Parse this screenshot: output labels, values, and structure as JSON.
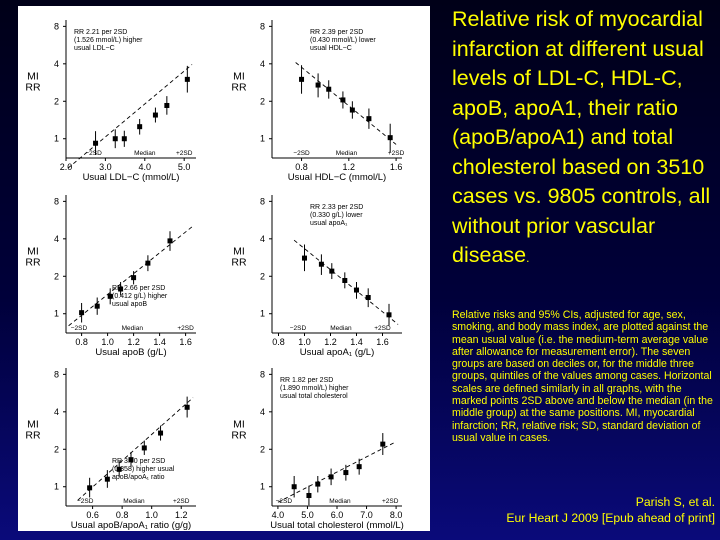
{
  "title": "Relative risk of myocardial infarction at different usual levels of LDL-C, HDL-C, apoB, apoA1, their ratio (apoB/apoA1) and total cholesterol based on 3510 cases vs. 9805 controls, all without prior vascular disease",
  "title_period": ".",
  "description": "Relative risks and 95% CIs, adjusted for age, sex, smoking, and body mass index, are plotted against the mean usual value (i.e. the medium-term average value after allowance for measurement error). The seven groups are based on deciles or, for the middle three groups, quintiles of the values among cases. Horizontal scales are defined similarly in all graphs, with the marked points 2SD above and below the median (in the middle group) at the same positions. MI, myocardial infarction; RR, relative risk; SD, standard deviation of usual value in cases.",
  "citation": {
    "authors": "Parish S, et al.",
    "journal": "Eur Heart J 2009 [Epub ahead of print]"
  },
  "colors": {
    "background": "#00003a",
    "text": "#ffff00",
    "figure_bg": "#ffffff",
    "ink": "#000000"
  },
  "chart_data": [
    {
      "type": "scatter",
      "xlabel": "Usual LDL−C (mmol/L)",
      "ylabel": [
        "MI",
        "RR"
      ],
      "xlim": [
        2.0,
        5.3
      ],
      "xticks": [
        2.0,
        3.0,
        4.0,
        5.0
      ],
      "xtick_labels": [
        "2.0",
        "3.0",
        "4.0",
        "5.0"
      ],
      "ylim_log": [
        0.7,
        9
      ],
      "yticks": [
        1,
        2,
        4,
        8
      ],
      "ytick_labels": [
        "1",
        "2",
        "4",
        "8"
      ],
      "annotation": [
        "RR 2.21 per 2SD",
        "(1.526 mmol/L) higher",
        "usual LDL−C"
      ],
      "annotation_position": "top-left",
      "sd_labels": [
        "−2SD",
        "Median",
        "+2SD"
      ],
      "sd_positions": [
        2.7,
        4.0,
        5.0
      ],
      "x": [
        2.75,
        3.25,
        3.48,
        3.87,
        4.27,
        4.56,
        5.08
      ],
      "y": [
        0.92,
        1.0,
        1.0,
        1.25,
        1.55,
        1.85,
        3.0
      ],
      "ci_low": [
        0.74,
        0.84,
        0.86,
        1.08,
        1.35,
        1.56,
        2.35
      ],
      "ci_high": [
        1.15,
        1.19,
        1.16,
        1.44,
        1.78,
        2.2,
        3.85
      ],
      "trend": [
        [
          2.05,
          0.58
        ],
        [
          5.2,
          3.95
        ]
      ]
    },
    {
      "type": "scatter",
      "xlabel": "Usual HDL−C (mmol/L)",
      "ylabel": [
        "MI",
        "RR"
      ],
      "xlim": [
        0.55,
        1.65
      ],
      "xticks": [
        0.8,
        1.2,
        1.6
      ],
      "xtick_labels": [
        "0.8",
        "1.2",
        "1.6"
      ],
      "ylim_log": [
        0.7,
        9
      ],
      "yticks": [
        1,
        2,
        4,
        8
      ],
      "ytick_labels": [
        "1",
        "2",
        "4",
        "8"
      ],
      "annotation": [
        "RR 2.39 per 2SD",
        "(0.430 mmol/L) lower",
        "usual HDL−C"
      ],
      "annotation_position": "top-center",
      "sd_labels": [
        "−2SD",
        "Median",
        "+2SD"
      ],
      "sd_positions": [
        0.8,
        1.18,
        1.6
      ],
      "x": [
        0.8,
        0.94,
        1.03,
        1.15,
        1.23,
        1.37,
        1.55
      ],
      "y": [
        3.0,
        2.7,
        2.5,
        2.05,
        1.7,
        1.45,
        1.02
      ],
      "ci_low": [
        2.3,
        2.15,
        2.1,
        1.75,
        1.45,
        1.2,
        0.78
      ],
      "ci_high": [
        3.9,
        3.35,
        2.95,
        2.4,
        2.0,
        1.75,
        1.32
      ],
      "trend": [
        [
          0.75,
          4.1
        ],
        [
          1.6,
          0.9
        ]
      ]
    },
    {
      "type": "scatter",
      "xlabel": "Usual apoB (g/L)",
      "ylabel": [
        "MI",
        "RR"
      ],
      "xlim": [
        0.68,
        1.68
      ],
      "xticks": [
        0.8,
        1.0,
        1.2,
        1.4,
        1.6
      ],
      "xtick_labels": [
        "0.8",
        "1.0",
        "1.2",
        "1.4",
        "1.6"
      ],
      "ylim_log": [
        0.7,
        9
      ],
      "yticks": [
        1,
        2,
        4,
        8
      ],
      "ytick_labels": [
        "1",
        "2",
        "4",
        "8"
      ],
      "annotation": [
        "RR 2.66 per 2SD",
        "(0.412 g/L) higher",
        "usual apoB"
      ],
      "annotation_position": "bottom-center",
      "sd_labels": [
        "−2SD",
        "Median",
        "+2SD"
      ],
      "sd_positions": [
        0.78,
        1.19,
        1.6
      ],
      "x": [
        0.8,
        0.92,
        1.02,
        1.1,
        1.2,
        1.31,
        1.48
      ],
      "y": [
        1.02,
        1.15,
        1.38,
        1.58,
        1.95,
        2.55,
        3.85
      ],
      "ci_low": [
        0.85,
        0.98,
        1.19,
        1.4,
        1.72,
        2.2,
        3.2
      ],
      "ci_high": [
        1.22,
        1.35,
        1.6,
        1.8,
        2.2,
        2.95,
        4.6
      ],
      "trend": [
        [
          0.7,
          0.8
        ],
        [
          1.65,
          5.0
        ]
      ]
    },
    {
      "type": "scatter",
      "xlabel": "Usual apoA₁ (g/L)",
      "ylabel": [
        "MI",
        "RR"
      ],
      "xlim": [
        0.75,
        1.75
      ],
      "xticks": [
        0.8,
        1.0,
        1.2,
        1.4,
        1.6
      ],
      "xtick_labels": [
        "0.8",
        "1.0",
        "1.2",
        "1.4",
        "1.6"
      ],
      "ylim_log": [
        0.7,
        9
      ],
      "yticks": [
        1,
        2,
        4,
        8
      ],
      "ytick_labels": [
        "1",
        "2",
        "4",
        "8"
      ],
      "annotation": [
        "RR 2.33 per 2SD",
        "(0.330 g/L) lower",
        "usual apoA₁"
      ],
      "annotation_position": "top-center",
      "sd_labels": [
        "−2SD",
        "Median",
        "+2SD"
      ],
      "sd_positions": [
        0.95,
        1.28,
        1.6
      ],
      "x": [
        1.0,
        1.13,
        1.21,
        1.31,
        1.4,
        1.49,
        1.65
      ],
      "y": [
        2.8,
        2.5,
        2.2,
        1.85,
        1.55,
        1.35,
        0.98
      ],
      "ci_low": [
        2.2,
        2.05,
        1.9,
        1.6,
        1.32,
        1.13,
        0.8
      ],
      "ci_high": [
        3.6,
        3.0,
        2.55,
        2.15,
        1.8,
        1.6,
        1.2
      ],
      "trend": [
        [
          0.92,
          3.9
        ],
        [
          1.72,
          0.82
        ]
      ]
    },
    {
      "type": "scatter",
      "xlabel": "Usual apoB/apoA₁ ratio (g/g)",
      "ylabel": [
        "MI",
        "RR"
      ],
      "xlim": [
        0.42,
        1.3
      ],
      "xticks": [
        0.6,
        0.8,
        1.0,
        1.2
      ],
      "xtick_labels": [
        "0.6",
        "0.8",
        "1.0",
        "1.2"
      ],
      "ylim_log": [
        0.7,
        9
      ],
      "yticks": [
        1,
        2,
        4,
        8
      ],
      "ytick_labels": [
        "1",
        "2",
        "4",
        "8"
      ],
      "annotation": [
        "RR 3.80 per 2SD",
        "(0.358) higher usual",
        "apoB/apoA₁ ratio"
      ],
      "annotation_position": "bottom-center",
      "sd_labels": [
        "−2SD",
        "Median",
        "+2SD"
      ],
      "sd_positions": [
        0.55,
        0.88,
        1.2
      ],
      "x": [
        0.58,
        0.7,
        0.78,
        0.86,
        0.95,
        1.06,
        1.24
      ],
      "y": [
        0.98,
        1.15,
        1.38,
        1.65,
        2.05,
        2.7,
        4.35
      ],
      "ci_low": [
        0.82,
        0.98,
        1.2,
        1.45,
        1.8,
        2.35,
        3.6
      ],
      "ci_high": [
        1.18,
        1.36,
        1.6,
        1.9,
        2.35,
        3.1,
        5.3
      ],
      "trend": [
        [
          0.5,
          0.78
        ],
        [
          1.28,
          5.2
        ]
      ]
    },
    {
      "type": "scatter",
      "xlabel": "Usual total cholesterol (mmol/L)",
      "ylabel": [
        "MI",
        "RR"
      ],
      "xlim": [
        3.8,
        8.2
      ],
      "xticks": [
        4.0,
        5.0,
        6.0,
        7.0,
        8.0
      ],
      "xtick_labels": [
        "4.0",
        "5.0",
        "6.0",
        "7.0",
        "8.0"
      ],
      "ylim_log": [
        0.7,
        9
      ],
      "yticks": [
        1,
        2,
        4,
        8
      ],
      "ytick_labels": [
        "1",
        "2",
        "4",
        "8"
      ],
      "annotation": [
        "RR 1.82 per 2SD",
        "(1.890 mmol/L) higher",
        "usual total cholesterol"
      ],
      "annotation_position": "top-left",
      "sd_labels": [
        "−2SD",
        "Median",
        "+2SD"
      ],
      "sd_positions": [
        4.2,
        6.1,
        7.8
      ],
      "x": [
        4.55,
        5.05,
        5.35,
        5.8,
        6.3,
        6.75,
        7.55
      ],
      "y": [
        1.0,
        0.85,
        1.05,
        1.2,
        1.3,
        1.45,
        2.2
      ],
      "ci_low": [
        0.82,
        0.71,
        0.9,
        1.03,
        1.12,
        1.25,
        1.8
      ],
      "ci_high": [
        1.22,
        1.02,
        1.22,
        1.4,
        1.5,
        1.68,
        2.7
      ],
      "trend": [
        [
          4.0,
          0.75
        ],
        [
          8.0,
          2.3
        ]
      ]
    }
  ]
}
